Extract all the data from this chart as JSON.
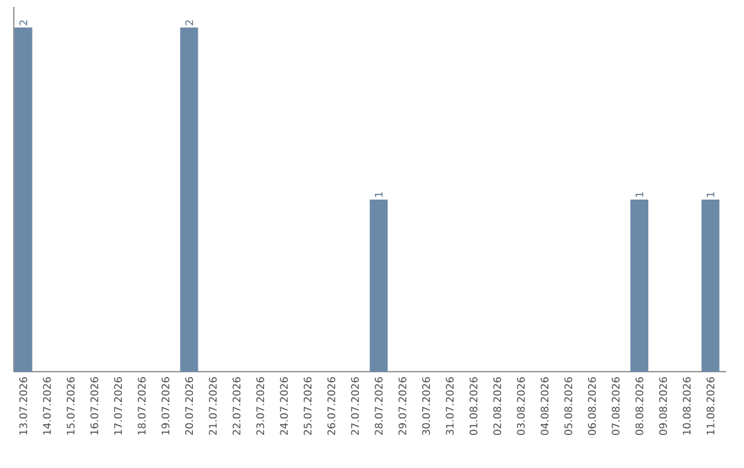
{
  "chart_data": {
    "type": "bar",
    "categories": [
      "13.07.2026",
      "14.07.2026",
      "15.07.2026",
      "16.07.2026",
      "17.07.2026",
      "18.07.2026",
      "19.07.2026",
      "20.07.2026",
      "21.07.2026",
      "22.07.2026",
      "23.07.2026",
      "24.07.2026",
      "25.07.2026",
      "26.07.2026",
      "27.07.2026",
      "28.07.2026",
      "29.07.2026",
      "30.07.2026",
      "31.07.2026",
      "01.08.2026",
      "02.08.2026",
      "03.08.2026",
      "04.08.2026",
      "05.08.2026",
      "06.08.2026",
      "07.08.2026",
      "08.08.2026",
      "09.08.2026",
      "10.08.2026",
      "11.08.2026"
    ],
    "values": [
      2,
      0,
      0,
      0,
      0,
      0,
      0,
      2,
      0,
      0,
      0,
      0,
      0,
      0,
      0,
      1,
      0,
      0,
      0,
      0,
      0,
      0,
      0,
      0,
      0,
      0,
      1,
      0,
      0,
      1
    ],
    "value_labels": [
      "2",
      null,
      null,
      null,
      null,
      null,
      null,
      "2",
      null,
      null,
      null,
      null,
      null,
      null,
      null,
      "1",
      null,
      null,
      null,
      null,
      null,
      null,
      null,
      null,
      null,
      null,
      "1",
      null,
      null,
      "1"
    ],
    "color": "#6b8aa8",
    "tick_labels": "x"
  }
}
